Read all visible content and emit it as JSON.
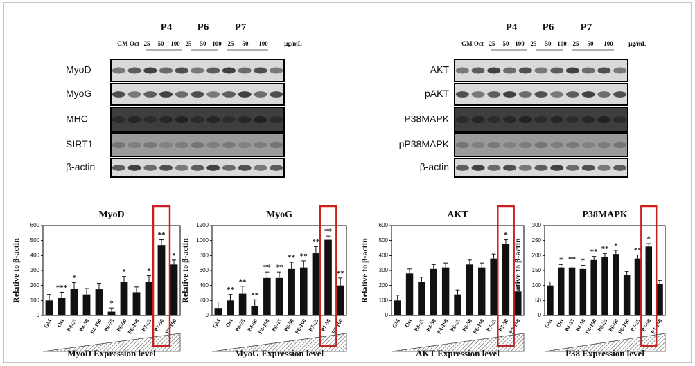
{
  "blot_panels": [
    {
      "groups": [
        "P4",
        "P6",
        "P7"
      ],
      "lanes": [
        "GM Oct",
        "25",
        "50",
        "100",
        "25",
        "50",
        "100",
        "25",
        "50",
        "100"
      ],
      "unit": "μg/mL",
      "rows": [
        "MyoD",
        "MyoG",
        "MHC",
        "SIRT1",
        "β-actin"
      ]
    },
    {
      "groups": [
        "P4",
        "P6",
        "P7"
      ],
      "lanes": [
        "GM Oct",
        "25",
        "50",
        "100",
        "25",
        "50",
        "100",
        "25",
        "50",
        "100"
      ],
      "unit": "μg/mL",
      "rows": [
        "AKT",
        "pAKT",
        "P38MAPK",
        "pP38MAPK",
        "β-actin"
      ]
    }
  ],
  "chart_data": [
    {
      "type": "bar",
      "title": "MyoD",
      "ylabel": "Relative to β-actin",
      "xlabel": "MyoD Expression level",
      "color": "#111111",
      "highlight": 9,
      "highlight_color": "#cc1f1f",
      "categories": [
        "GM",
        "Oct",
        "P4-25",
        "P4-50",
        "P4-100",
        "P6-25",
        "P6-50",
        "P6-100",
        "P7-25",
        "P7-50",
        "P7-100"
      ],
      "values": [
        100,
        120,
        180,
        140,
        175,
        25,
        225,
        155,
        225,
        470,
        340
      ],
      "errors": [
        40,
        35,
        40,
        40,
        40,
        25,
        35,
        35,
        40,
        35,
        30
      ],
      "annotations": [
        null,
        "***",
        "*",
        null,
        null,
        "*",
        "*",
        null,
        "*",
        "**",
        "*"
      ],
      "ylim": [
        0,
        600
      ],
      "yticks": [
        0,
        100,
        200,
        300,
        400,
        500,
        600
      ]
    },
    {
      "type": "bar",
      "title": "MyoG",
      "ylabel": "Relative to β-actin",
      "xlabel": "MyoG Expression level",
      "color": "#111111",
      "highlight": 9,
      "highlight_color": "#cc1f1f",
      "categories": [
        "GM",
        "Oct",
        "P4-25",
        "P4-50",
        "P4-100",
        "P6-25",
        "P6-50",
        "P6-100",
        "P7-25",
        "P7-50",
        "P7-100"
      ],
      "values": [
        100,
        200,
        290,
        120,
        500,
        500,
        620,
        640,
        830,
        1010,
        400
      ],
      "errors": [
        80,
        80,
        100,
        90,
        80,
        80,
        90,
        90,
        90,
        50,
        100
      ],
      "annotations": [
        null,
        "**",
        "**",
        "**",
        "**",
        "**",
        "**",
        "**",
        "**",
        "**",
        "**"
      ],
      "ylim": [
        0,
        1200
      ],
      "yticks": [
        0,
        200,
        400,
        600,
        800,
        1000,
        1200
      ]
    },
    {
      "type": "bar",
      "title": "AKT",
      "ylabel": "Relative to β-actin",
      "xlabel": "AKT Expression level",
      "color": "#111111",
      "highlight": 9,
      "highlight_color": "#cc1f1f",
      "categories": [
        "GM",
        "Oct",
        "P4-25",
        "P4-50",
        "P4-100",
        "P6-25",
        "P6-50",
        "P6-100",
        "P7-25",
        "P7-50",
        "P7-100"
      ],
      "values": [
        100,
        280,
        225,
        310,
        320,
        140,
        340,
        320,
        380,
        480,
        160
      ],
      "errors": [
        35,
        30,
        30,
        30,
        30,
        30,
        30,
        30,
        30,
        25,
        30
      ],
      "annotations": [
        null,
        null,
        null,
        null,
        null,
        null,
        null,
        null,
        null,
        "*",
        null
      ],
      "ylim": [
        0,
        600
      ],
      "yticks": [
        0,
        100,
        200,
        300,
        400,
        500,
        600
      ]
    },
    {
      "type": "bar",
      "title": "P38MAPK",
      "ylabel": "Relative to β-actin",
      "xlabel": "P38 Expression level",
      "color": "#111111",
      "highlight": 9,
      "highlight_color": "#cc1f1f",
      "categories": [
        "GM",
        "Oct",
        "P4-25",
        "P4-50",
        "P4-100",
        "P6-25",
        "P6-50",
        "P6-100",
        "P7-25",
        "P7-50",
        "P7-100"
      ],
      "values": [
        100,
        160,
        160,
        155,
        185,
        195,
        205,
        135,
        190,
        230,
        105
      ],
      "errors": [
        12,
        10,
        12,
        12,
        12,
        12,
        12,
        12,
        12,
        10,
        12
      ],
      "annotations": [
        null,
        "*",
        "**",
        "*",
        "**",
        "**",
        "*",
        null,
        "**",
        "*",
        null
      ],
      "ylim": [
        0,
        300
      ],
      "yticks": [
        0,
        50,
        100,
        150,
        200,
        250,
        300
      ]
    }
  ]
}
